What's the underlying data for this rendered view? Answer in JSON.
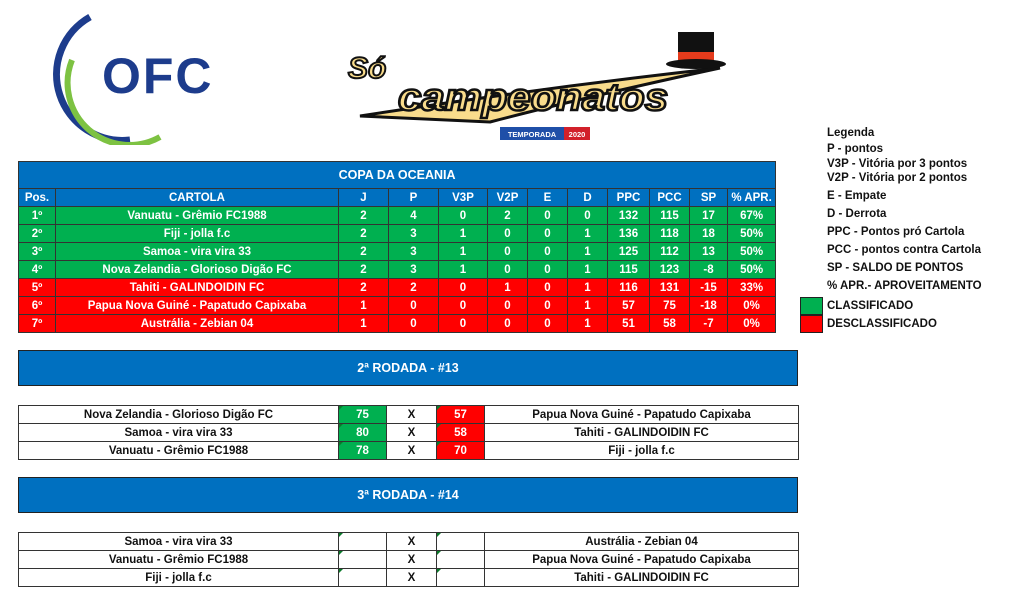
{
  "logos": {
    "ofc": "OFC",
    "brand": "Só Campeonatos",
    "season_label": "TEMPORADA",
    "season_year": "2020"
  },
  "standings": {
    "title": "COPA DA OCEANIA",
    "headers": [
      "Pos.",
      "CARTOLA",
      "J",
      "P",
      "V3P",
      "V2P",
      "E",
      "D",
      "PPC",
      "PCC",
      "SP",
      "% APR."
    ],
    "rows": [
      {
        "status": "classificado",
        "cells": [
          "1º",
          "Vanuatu - Grêmio FC1988",
          "2",
          "4",
          "0",
          "2",
          "0",
          "0",
          "132",
          "115",
          "17",
          "67%"
        ]
      },
      {
        "status": "classificado",
        "cells": [
          "2º",
          "Fiji - jolla f.c",
          "2",
          "3",
          "1",
          "0",
          "0",
          "1",
          "136",
          "118",
          "18",
          "50%"
        ]
      },
      {
        "status": "classificado",
        "cells": [
          "3º",
          "Samoa - vira vira 33",
          "2",
          "3",
          "1",
          "0",
          "0",
          "1",
          "125",
          "112",
          "13",
          "50%"
        ]
      },
      {
        "status": "classificado",
        "cells": [
          "4º",
          "Nova Zelandia - Glorioso Digão FC",
          "2",
          "3",
          "1",
          "0",
          "0",
          "1",
          "115",
          "123",
          "-8",
          "50%"
        ]
      },
      {
        "status": "desclassificado",
        "cells": [
          "5º",
          "Tahiti - GALINDOIDIN FC",
          "2",
          "2",
          "0",
          "1",
          "0",
          "1",
          "116",
          "131",
          "-15",
          "33%"
        ]
      },
      {
        "status": "desclassificado",
        "cells": [
          "6º",
          "Papua Nova Guiné - Papatudo Capixaba",
          "1",
          "0",
          "0",
          "0",
          "0",
          "1",
          "57",
          "75",
          "-18",
          "0%"
        ]
      },
      {
        "status": "desclassificado",
        "cells": [
          "7º",
          "Austrália - Zebian 04",
          "1",
          "0",
          "0",
          "0",
          "0",
          "1",
          "51",
          "58",
          "-7",
          "0%"
        ]
      }
    ]
  },
  "legend": {
    "title": "Legenda",
    "items": [
      "P - pontos",
      "V3P - Vitória por 3 pontos",
      "V2P - Vitória por 2 pontos",
      "E - Empate",
      "D - Derrota",
      "PPC - Pontos pró Cartola",
      "PCC - pontos contra Cartola",
      "SP  - SALDO DE PONTOS",
      "% APR.- APROVEITAMENTO"
    ],
    "classificado": "CLASSIFICADO",
    "desclassificado": "DESCLASSIFICADO"
  },
  "colors": {
    "blue": "#0070c0",
    "green": "#00b050",
    "red": "#ff0000"
  },
  "rounds": [
    {
      "title": "2ª RODADA - #13",
      "matches": [
        {
          "home": "Nova Zelandia - Glorioso Digão FC",
          "hs": "75",
          "sep": "X",
          "as": "57",
          "away": "Papua Nova Guiné - Papatudo Capixaba"
        },
        {
          "home": "Samoa - vira vira 33",
          "hs": "80",
          "sep": "X",
          "as": "58",
          "away": "Tahiti - GALINDOIDIN FC"
        },
        {
          "home": "Vanuatu - Grêmio FC1988",
          "hs": "78",
          "sep": "X",
          "as": "70",
          "away": "Fiji - jolla f.c"
        }
      ]
    },
    {
      "title": "3ª RODADA - #14",
      "matches": [
        {
          "home": "Samoa - vira vira 33",
          "hs": "",
          "sep": "X",
          "as": "",
          "away": "Austrália - Zebian 04"
        },
        {
          "home": "Vanuatu - Grêmio FC1988",
          "hs": "",
          "sep": "X",
          "as": "",
          "away": "Papua Nova Guiné - Papatudo Capixaba"
        },
        {
          "home": "Fiji - jolla f.c",
          "hs": "",
          "sep": "X",
          "as": "",
          "away": "Tahiti - GALINDOIDIN FC"
        }
      ]
    }
  ]
}
